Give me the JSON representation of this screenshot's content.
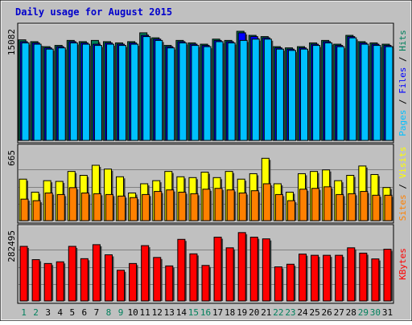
{
  "title": "Daily usage for August 2015",
  "colors": {
    "background": "#c0c0c0",
    "frame": "#ececec",
    "title": "#0000cc",
    "hits": "#00805c",
    "files": "#0000ff",
    "pages": "#00c0ff",
    "visits": "#ffff00",
    "sites": "#ff8000",
    "kbytes": "#ff0000",
    "weekend_day": "#00805c",
    "weekday": "#000000"
  },
  "chart_data": {
    "type": "bar",
    "categories": [
      "1",
      "2",
      "3",
      "4",
      "5",
      "6",
      "7",
      "8",
      "9",
      "10",
      "11",
      "12",
      "13",
      "14",
      "15",
      "16",
      "17",
      "18",
      "19",
      "20",
      "21",
      "22",
      "23",
      "24",
      "25",
      "26",
      "27",
      "28",
      "29",
      "30",
      "31"
    ],
    "weekend_days": [
      "1",
      "2",
      "8",
      "9",
      "15",
      "16",
      "22",
      "23",
      "29",
      "30"
    ],
    "panels": [
      {
        "name": "hits-files-pages",
        "y_max_label": "15082",
        "ymax": 15082,
        "axis_label": [
          {
            "text": "Pages",
            "color_key": "pages"
          },
          {
            "text": " / ",
            "color_key": "weekday"
          },
          {
            "text": "Files",
            "color_key": "files"
          },
          {
            "text": " / ",
            "color_key": "weekday"
          },
          {
            "text": "Hits",
            "color_key": "hits"
          }
        ],
        "series": [
          {
            "name": "Hits",
            "color_key": "hits",
            "values": [
              13900,
              13650,
              12960,
              13130,
              13820,
              13650,
              13820,
              13650,
              13480,
              13650,
              14870,
              14180,
              13130,
              13820,
              13480,
              13300,
              14000,
              13820,
              15082,
              14520,
              14350,
              12960,
              12790,
              12960,
              13480,
              13820,
              13300,
              14520,
              13650,
              13480,
              13300
            ]
          },
          {
            "name": "Files",
            "color_key": "files",
            "values": [
              13650,
              13480,
              12790,
              12960,
              13650,
              13480,
              13300,
              13480,
              13300,
              13480,
              14520,
              14000,
              12960,
              13650,
              13300,
              13130,
              13820,
              13650,
              14870,
              14350,
              14180,
              12790,
              12620,
              12790,
              13300,
              13650,
              13130,
              14350,
              13480,
              13300,
              13130
            ]
          },
          {
            "name": "Pages",
            "color_key": "pages",
            "values": [
              13480,
              13300,
              12620,
              12790,
              13480,
              13300,
              13130,
              13300,
              13130,
              13300,
              14350,
              13820,
              12790,
              13480,
              13130,
              12960,
              13650,
              13480,
              13820,
              14000,
              14000,
              12620,
              12440,
              12620,
              13130,
              13480,
              12960,
              14180,
              13300,
              13130,
              12960
            ]
          }
        ]
      },
      {
        "name": "visits-sites",
        "y_max_label": "665",
        "ymax": 665,
        "axis_label": [
          {
            "text": "Sites",
            "color_key": "sites"
          },
          {
            "text": " / ",
            "color_key": "weekday"
          },
          {
            "text": "Visits",
            "color_key": "visits"
          }
        ],
        "series": [
          {
            "name": "Visits",
            "color_key": "visits",
            "values": [
              405,
              278,
              390,
              383,
              480,
              442,
              540,
              503,
              428,
              270,
              360,
              390,
              480,
              428,
              420,
              473,
              420,
              480,
              405,
              458,
              608,
              360,
              278,
              458,
              480,
              495,
              390,
              442,
              533,
              450,
              323
            ]
          },
          {
            "name": "Sites",
            "color_key": "sites",
            "values": [
              210,
              195,
              270,
              255,
              322,
              270,
              263,
              255,
              240,
              225,
              255,
              285,
              300,
              278,
              263,
              307,
              315,
              300,
              270,
              292,
              360,
              255,
              195,
              307,
              315,
              330,
              255,
              263,
              285,
              248,
              248
            ]
          }
        ]
      },
      {
        "name": "kbytes",
        "y_max_label": "282495",
        "ymax": 282495,
        "axis_label": [
          {
            "text": "KBytes",
            "color_key": "kbytes"
          }
        ],
        "series": [
          {
            "name": "KBytes",
            "color_key": "kbytes",
            "values": [
              226000,
              171000,
              155000,
              162000,
              226000,
              175000,
              233000,
              191000,
              127000,
              155000,
              229000,
              180000,
              145000,
              255000,
              195000,
              147000,
              264000,
              220000,
              283000,
              264000,
              257000,
              141000,
              152000,
              194000,
              189000,
              189000,
              189000,
              220000,
              198000,
              174000,
              214000
            ]
          }
        ]
      }
    ]
  }
}
